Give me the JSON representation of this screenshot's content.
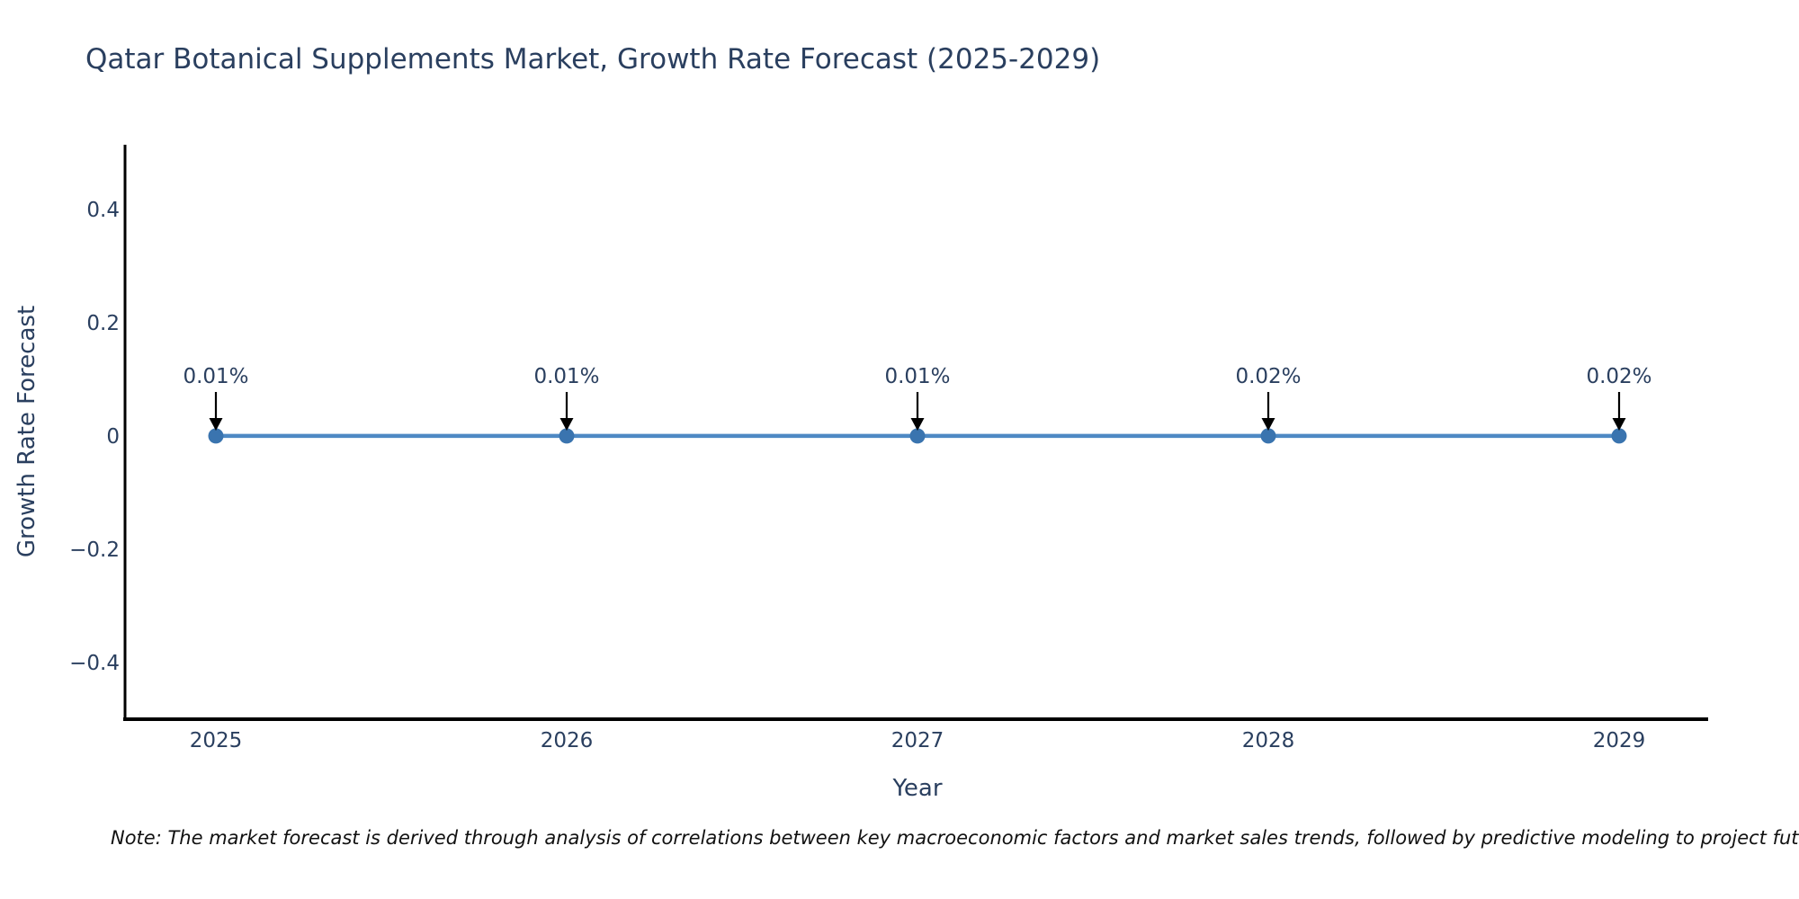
{
  "chart_data": {
    "type": "line",
    "title": "Qatar Botanical Supplements Market, Growth Rate Forecast (2025-2029)",
    "xlabel": "Year",
    "ylabel": "Growth Rate Forecast",
    "x": [
      "2025",
      "2026",
      "2027",
      "2028",
      "2029"
    ],
    "series": [
      {
        "name": "Growth Rate Forecast",
        "values_percent": [
          0.01,
          0.01,
          0.01,
          0.02,
          0.02
        ]
      }
    ],
    "point_labels": [
      "0.01%",
      "0.01%",
      "0.01%",
      "0.02%",
      "0.02%"
    ],
    "yticks": [
      0.4,
      0.2,
      0,
      -0.2,
      -0.4
    ],
    "ytick_labels": [
      "0.4",
      "0.2",
      "0",
      "−0.2",
      "−0.4"
    ],
    "ylim": [
      -0.51,
      0.51
    ],
    "grid": false,
    "legend": "none",
    "annotation_style": "down-arrow",
    "colors": {
      "line": "#4e89c4",
      "marker": "#3a74af",
      "axis": "#000000",
      "text": "#2a3f5f",
      "arrow": "#000000"
    }
  },
  "footer": {
    "note": "Note: The market forecast is derived through analysis of correlations between key macroeconomic factors and market sales trends, followed by predictive modeling to project future sales."
  }
}
